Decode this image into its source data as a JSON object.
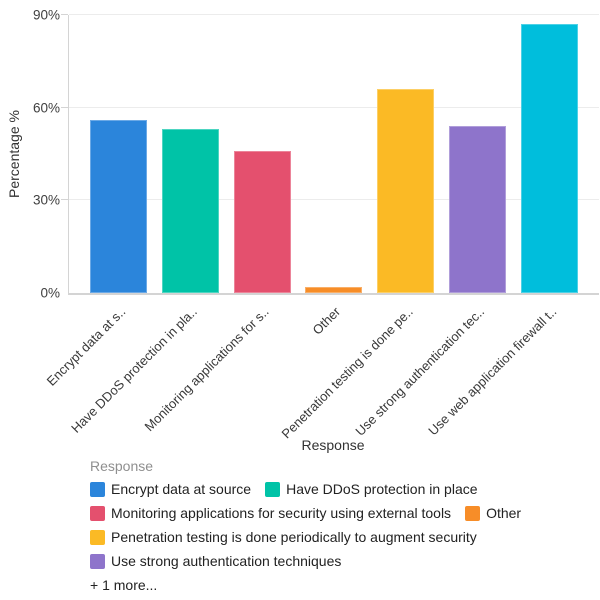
{
  "chart_data": {
    "type": "bar",
    "title": "",
    "xlabel": "Response",
    "ylabel": "Percentage %",
    "ylim": [
      0,
      90
    ],
    "yticks": [
      0,
      30,
      60,
      90
    ],
    "ytick_labels": [
      "0%",
      "30%",
      "60%",
      "90%"
    ],
    "grid": true,
    "legend_position": "bottom",
    "categories": [
      "Encrypt data at source",
      "Have DDoS protection in place",
      "Monitoring applications for security using external tools",
      "Other",
      "Penetration testing is done periodically to augment security",
      "Use strong authentication techniques",
      "Use web application firewall t.."
    ],
    "x_tick_labels": [
      "Encrypt data at s..",
      "Have DDoS protection in pla..",
      "Monitoring applications for s..",
      "Other",
      "Penetration testing is done pe..",
      "Use strong authentication tec..",
      "Use web application firewall t.."
    ],
    "values": [
      56,
      53,
      46,
      2,
      66,
      54,
      87
    ],
    "colors": [
      "#2B85DB",
      "#00C3A7",
      "#E4506E",
      "#F78D28",
      "#FBBA25",
      "#8E74CB",
      "#00BEDC"
    ]
  },
  "legend": {
    "title": "Response",
    "items": [
      {
        "label": "Encrypt data at source",
        "color": "#2B85DB"
      },
      {
        "label": "Have DDoS protection in place",
        "color": "#00C3A7"
      },
      {
        "label": "Monitoring applications for security using external tools",
        "color": "#E4506E"
      },
      {
        "label": "Other",
        "color": "#F78D28"
      },
      {
        "label": "Penetration testing is done periodically to augment security",
        "color": "#FBBA25"
      },
      {
        "label": "Use strong authentication techniques",
        "color": "#8E74CB"
      }
    ],
    "more_label": "+ 1 more..."
  }
}
